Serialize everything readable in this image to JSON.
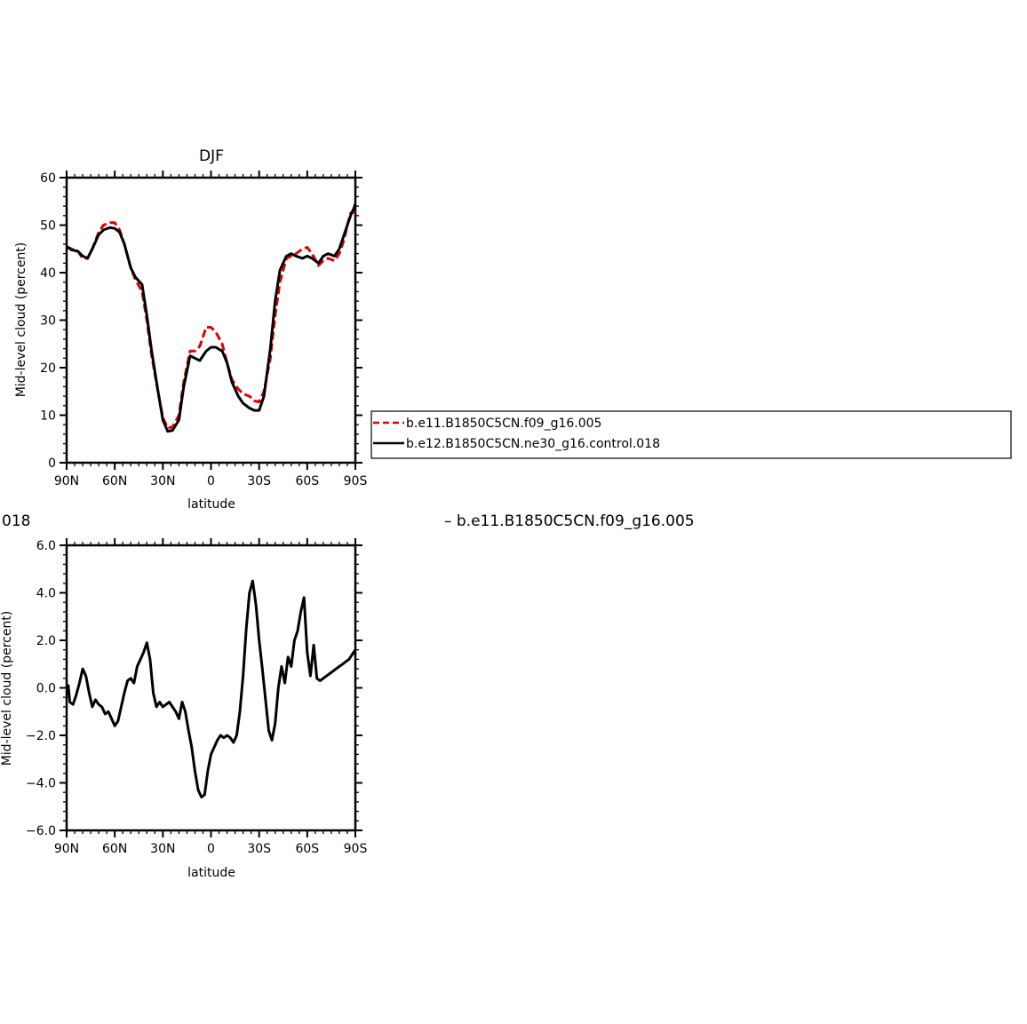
{
  "page": {
    "top_title": "DJF",
    "bottom_title_fragment": "018",
    "bottom_title_right": "– b.e11.B1850C5CN.f09_g16.005"
  },
  "legend": {
    "items": [
      {
        "label": "b.e11.B1850C5CN.f09_g16.005",
        "color": "#e00000",
        "style": "dashed"
      },
      {
        "label": "b.e12.B1850C5CN.ne30_g16.control.018",
        "color": "#000000",
        "style": "solid"
      }
    ]
  },
  "chart_data": [
    {
      "type": "line",
      "title": "DJF",
      "xlabel": "latitude",
      "ylabel": "Mid-level cloud (percent)",
      "xlim": [
        90,
        -90
      ],
      "ylim": [
        0,
        60
      ],
      "xticks": [
        90,
        60,
        30,
        0,
        -30,
        -60,
        -90
      ],
      "xtick_labels": [
        "90N",
        "60N",
        "30N",
        "0",
        "30S",
        "60S",
        "90S"
      ],
      "yticks": [
        0,
        10,
        20,
        30,
        40,
        50,
        60
      ],
      "ytick_labels": [
        "0",
        "10",
        "20",
        "30",
        "40",
        "50",
        "60"
      ],
      "grid": false,
      "legend_position": "right",
      "series": [
        {
          "name": "b.e11.B1850C5CN.f09_g16.005",
          "color": "#e00000",
          "dash": "dashed",
          "x": [
            90,
            87,
            83,
            80,
            77,
            74,
            70,
            67,
            63,
            60,
            57,
            54,
            50,
            47,
            43,
            40,
            37,
            33,
            30,
            27,
            24,
            20,
            17,
            13,
            10,
            7,
            3,
            0,
            -3,
            -7,
            -10,
            -13,
            -17,
            -20,
            -24,
            -27,
            -30,
            -33,
            -37,
            -40,
            -43,
            -47,
            -50,
            -53,
            -57,
            -60,
            -63,
            -67,
            -70,
            -73,
            -77,
            -80,
            -83,
            -85,
            -87,
            -89,
            -90
          ],
          "y": [
            45.5,
            45.0,
            44.5,
            43.0,
            43.0,
            45.0,
            48.5,
            50.0,
            50.5,
            50.5,
            49.0,
            46.0,
            41.0,
            38.5,
            36.0,
            30.0,
            22.5,
            15.0,
            9.5,
            7.3,
            7.5,
            10.0,
            17.0,
            23.5,
            23.5,
            24.5,
            28.5,
            28.5,
            27.5,
            25.0,
            21.0,
            17.5,
            15.5,
            14.5,
            14.0,
            13.0,
            12.8,
            15.0,
            22.0,
            31.0,
            38.0,
            43.0,
            43.5,
            44.0,
            45.0,
            45.3,
            44.0,
            41.5,
            42.5,
            43.0,
            42.5,
            44.0,
            47.0,
            50.0,
            52.5,
            53.0,
            51.5
          ]
        },
        {
          "name": "b.e12.B1850C5CN.ne30_g16.control.018",
          "color": "#000000",
          "dash": "solid",
          "x": [
            90,
            87,
            83,
            80,
            77,
            74,
            70,
            67,
            63,
            60,
            57,
            54,
            50,
            47,
            43,
            40,
            37,
            33,
            30,
            27,
            24,
            20,
            17,
            13,
            10,
            7,
            3,
            0,
            -3,
            -7,
            -10,
            -13,
            -17,
            -20,
            -24,
            -27,
            -30,
            -33,
            -37,
            -40,
            -43,
            -47,
            -50,
            -53,
            -57,
            -60,
            -63,
            -67,
            -70,
            -73,
            -77,
            -80,
            -83,
            -85,
            -87,
            -89,
            -90
          ],
          "y": [
            45.5,
            44.8,
            44.5,
            43.5,
            43.0,
            45.0,
            48.0,
            49.0,
            49.5,
            49.3,
            48.5,
            46.0,
            41.0,
            39.0,
            37.5,
            31.0,
            23.5,
            15.0,
            9.0,
            6.6,
            6.8,
            9.0,
            16.0,
            22.5,
            22.0,
            21.5,
            23.5,
            24.3,
            24.3,
            23.5,
            21.0,
            17.0,
            14.0,
            12.5,
            11.5,
            11.0,
            11.0,
            14.0,
            24.0,
            34.0,
            40.5,
            43.5,
            44.0,
            43.5,
            43.0,
            43.5,
            43.0,
            42.0,
            43.5,
            44.0,
            43.5,
            45.0,
            48.0,
            50.0,
            52.0,
            53.5,
            54.5
          ]
        }
      ]
    },
    {
      "type": "line",
      "title": "",
      "xlabel": "latitude",
      "ylabel": "Mid-level cloud (percent)",
      "xlim": [
        90,
        -90
      ],
      "ylim": [
        -6,
        6
      ],
      "xticks": [
        90,
        60,
        30,
        0,
        -30,
        -60,
        -90
      ],
      "xtick_labels": [
        "90N",
        "60N",
        "30N",
        "0",
        "30S",
        "60S",
        "90S"
      ],
      "yticks": [
        -6,
        -4,
        -2,
        0,
        2,
        4,
        6
      ],
      "ytick_labels": [
        "−6.0",
        "−4.0",
        "−2.0",
        "0.0",
        "2.0",
        "4.0",
        "6.0"
      ],
      "grid": false,
      "series": [
        {
          "color": "#000000",
          "dash": "solid",
          "x": [
            90,
            89,
            88,
            86,
            84,
            82,
            80,
            78,
            76,
            74,
            72,
            70,
            68,
            66,
            64,
            62,
            60,
            58,
            56,
            54,
            52,
            50,
            48,
            46,
            44,
            42,
            40,
            38,
            36,
            34,
            32,
            30,
            28,
            26,
            24,
            22,
            20,
            18,
            16,
            14,
            12,
            10,
            8,
            6,
            4,
            2,
            0,
            -2,
            -4,
            -6,
            -8,
            -10,
            -12,
            -14,
            -16,
            -18,
            -20,
            -22,
            -24,
            -26,
            -28,
            -30,
            -32,
            -34,
            -36,
            -38,
            -40,
            -42,
            -44,
            -46,
            -48,
            -50,
            -52,
            -54,
            -56,
            -58,
            -60,
            -62,
            -64,
            -66,
            -68,
            -70,
            -72,
            -74,
            -76,
            -78,
            -80,
            -82,
            -84,
            -86,
            -87,
            -88,
            -89,
            -90
          ],
          "y": [
            -0.2,
            0.1,
            -0.6,
            -0.7,
            -0.3,
            0.2,
            0.8,
            0.5,
            -0.2,
            -0.8,
            -0.5,
            -0.7,
            -0.8,
            -1.1,
            -1.0,
            -1.3,
            -1.6,
            -1.4,
            -0.8,
            -0.2,
            0.3,
            0.4,
            0.2,
            0.9,
            1.2,
            1.5,
            1.9,
            1.2,
            -0.2,
            -0.8,
            -0.6,
            -0.8,
            -0.7,
            -0.6,
            -0.8,
            -1.0,
            -1.3,
            -0.6,
            -1.0,
            -1.8,
            -2.5,
            -3.5,
            -4.3,
            -4.6,
            -4.5,
            -3.5,
            -2.8,
            -2.5,
            -2.2,
            -2.0,
            -2.1,
            -2.0,
            -2.1,
            -2.3,
            -2.0,
            -1.0,
            0.5,
            2.5,
            4.0,
            4.5,
            3.5,
            2.0,
            0.8,
            -0.5,
            -1.8,
            -2.2,
            -1.5,
            0.0,
            0.9,
            0.2,
            1.3,
            0.9,
            2.0,
            2.4,
            3.2,
            3.8,
            1.5,
            0.5,
            1.8,
            0.4,
            0.3,
            0.4,
            0.5,
            0.6,
            0.7,
            0.8,
            0.9,
            1.0,
            1.1,
            1.2,
            1.3,
            1.4,
            1.5,
            1.6
          ]
        }
      ]
    }
  ]
}
